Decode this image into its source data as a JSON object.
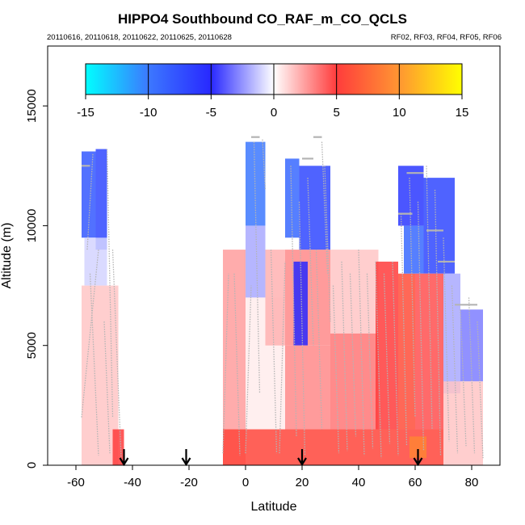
{
  "chart_data": {
    "type": "heatmap",
    "title": "HIPPO4 Southbound CO_RAF_m_CO_QCLS",
    "subtitle_left": "20110616, 20110618, 20110622, 20110625, 20110628",
    "subtitle_right": "RF02, RF03, RF04, RF05, RF06",
    "xlabel": "Latitude",
    "ylabel": "Altitude (m)",
    "xlim": [
      -70,
      90
    ],
    "ylim": [
      0,
      17500
    ],
    "x_ticks": [
      -60,
      -40,
      -20,
      0,
      20,
      40,
      60,
      80
    ],
    "x_tick_labels": [
      "-60",
      "-40",
      "-20",
      "0",
      "20",
      "40",
      "60",
      "80"
    ],
    "y_ticks": [
      0,
      5000,
      10000,
      15000
    ],
    "y_tick_labels": [
      "0",
      "5000",
      "10000",
      "15000"
    ],
    "colorbar": {
      "min": -15,
      "max": 15,
      "ticks": [
        -15,
        -10,
        -5,
        0,
        5,
        10,
        15
      ],
      "tick_labels": [
        "-15",
        "-10",
        "-5",
        "0",
        "5",
        "10",
        "15"
      ],
      "stops": [
        {
          "value": -15,
          "color": "#00ffff"
        },
        {
          "value": -10,
          "color": "#3c78ff"
        },
        {
          "value": -5,
          "color": "#2828ff"
        },
        {
          "value": 0,
          "color": "#ffffff"
        },
        {
          "value": 5,
          "color": "#ff3c3c"
        },
        {
          "value": 10,
          "color": "#ff9632"
        },
        {
          "value": 15,
          "color": "#ffff00"
        }
      ]
    },
    "markers_latitude": [
      -43,
      -21,
      20,
      61
    ],
    "regions": [
      {
        "lat": [
          -58,
          -53
        ],
        "alt": [
          9500,
          13100
        ],
        "value": -8
      },
      {
        "lat": [
          -53,
          -49
        ],
        "alt": [
          9000,
          13200
        ],
        "value": -7
      },
      {
        "lat": [
          -57,
          -49
        ],
        "alt": [
          7500,
          9500
        ],
        "value": -1
      },
      {
        "lat": [
          -58,
          -45
        ],
        "alt": [
          0,
          7500
        ],
        "value": 1.5
      },
      {
        "lat": [
          -47,
          -43
        ],
        "alt": [
          0,
          1500
        ],
        "value": 5
      },
      {
        "lat": [
          -8,
          0
        ],
        "alt": [
          0,
          9000
        ],
        "value": 2.5
      },
      {
        "lat": [
          0,
          7
        ],
        "alt": [
          10000,
          13500
        ],
        "value": -10
      },
      {
        "lat": [
          0,
          7
        ],
        "alt": [
          7000,
          10000
        ],
        "value": -2
      },
      {
        "lat": [
          0,
          14
        ],
        "alt": [
          1500,
          7000
        ],
        "value": 0.5
      },
      {
        "lat": [
          7,
          14
        ],
        "alt": [
          5000,
          9000
        ],
        "value": 2
      },
      {
        "lat": [
          14,
          19
        ],
        "alt": [
          9500,
          12800
        ],
        "value": -9
      },
      {
        "lat": [
          19,
          30
        ],
        "alt": [
          9000,
          12500
        ],
        "value": -7
      },
      {
        "lat": [
          14,
          30
        ],
        "alt": [
          5000,
          9000
        ],
        "value": 3
      },
      {
        "lat": [
          17,
          22
        ],
        "alt": [
          5000,
          8500
        ],
        "value": -5
      },
      {
        "lat": [
          14,
          30
        ],
        "alt": [
          1500,
          5000
        ],
        "value": 3
      },
      {
        "lat": [
          30,
          47
        ],
        "alt": [
          5500,
          9000
        ],
        "value": 1.5
      },
      {
        "lat": [
          30,
          47
        ],
        "alt": [
          1500,
          5500
        ],
        "value": 3.5
      },
      {
        "lat": [
          46,
          54
        ],
        "alt": [
          1500,
          8500
        ],
        "value": 5
      },
      {
        "lat": [
          54,
          60
        ],
        "alt": [
          1500,
          8000
        ],
        "value": 6
      },
      {
        "lat": [
          54,
          63
        ],
        "alt": [
          10000,
          12500
        ],
        "value": -6
      },
      {
        "lat": [
          56,
          63
        ],
        "alt": [
          8000,
          10000
        ],
        "value": -9
      },
      {
        "lat": [
          63,
          74
        ],
        "alt": [
          8000,
          12000
        ],
        "value": -7
      },
      {
        "lat": [
          60,
          70
        ],
        "alt": [
          1500,
          8000
        ],
        "value": 4.5
      },
      {
        "lat": [
          70,
          76
        ],
        "alt": [
          3000,
          8000
        ],
        "value": -2
      },
      {
        "lat": [
          76,
          84
        ],
        "alt": [
          3500,
          6500
        ],
        "value": -3
      },
      {
        "lat": [
          70,
          84
        ],
        "alt": [
          0,
          3500
        ],
        "value": 1.5
      },
      {
        "lat": [
          -8,
          70
        ],
        "alt": [
          0,
          1500
        ],
        "value": 5.5
      },
      {
        "lat": [
          58,
          64
        ],
        "alt": [
          300,
          1200
        ],
        "value": 9
      }
    ],
    "profiles": [
      {
        "lat": [
          -58,
          -52
        ],
        "alt": [
          2000,
          9000
        ]
      },
      {
        "lat": [
          -56,
          -54
        ],
        "alt": [
          9000,
          13000
        ]
      },
      {
        "lat": [
          -49,
          -47
        ],
        "alt": [
          13200,
          2000
        ]
      },
      {
        "lat": [
          -47,
          -44
        ],
        "alt": [
          9000,
          300
        ]
      },
      {
        "lat": [
          -55,
          -52
        ],
        "alt": [
          8000,
          400
        ]
      },
      {
        "lat": [
          -50,
          -48
        ],
        "alt": [
          6000,
          500
        ]
      },
      {
        "lat": [
          -8,
          -6
        ],
        "alt": [
          500,
          8000
        ]
      },
      {
        "lat": [
          -4,
          -2
        ],
        "alt": [
          8000,
          400
        ]
      },
      {
        "lat": [
          0,
          2
        ],
        "alt": [
          500,
          7500
        ]
      },
      {
        "lat": [
          3,
          5
        ],
        "alt": [
          13500,
          3000
        ]
      },
      {
        "lat": [
          6,
          7
        ],
        "alt": [
          13600,
          11500
        ]
      },
      {
        "lat": [
          9,
          11
        ],
        "alt": [
          9000,
          500
        ]
      },
      {
        "lat": [
          12,
          14
        ],
        "alt": [
          500,
          8500
        ]
      },
      {
        "lat": [
          16,
          18
        ],
        "alt": [
          12500,
          1200
        ]
      },
      {
        "lat": [
          19,
          21
        ],
        "alt": [
          11000,
          400
        ]
      },
      {
        "lat": [
          22,
          24
        ],
        "alt": [
          12000,
          5000
        ]
      },
      {
        "lat": [
          25,
          27
        ],
        "alt": [
          9000,
          1500
        ]
      },
      {
        "lat": [
          27,
          29
        ],
        "alt": [
          13500,
          8000
        ]
      },
      {
        "lat": [
          28,
          30
        ],
        "alt": [
          12500,
          6000
        ]
      },
      {
        "lat": [
          31,
          33
        ],
        "alt": [
          7500,
          500
        ]
      },
      {
        "lat": [
          34,
          36
        ],
        "alt": [
          8500,
          600
        ]
      },
      {
        "lat": [
          37,
          39
        ],
        "alt": [
          8000,
          1200
        ]
      },
      {
        "lat": [
          40,
          42
        ],
        "alt": [
          9000,
          400
        ]
      },
      {
        "lat": [
          43,
          45
        ],
        "alt": [
          8000,
          700
        ]
      },
      {
        "lat": [
          46,
          48
        ],
        "alt": [
          8500,
          300
        ]
      },
      {
        "lat": [
          49,
          51
        ],
        "alt": [
          8000,
          900
        ]
      },
      {
        "lat": [
          52,
          54
        ],
        "alt": [
          8500,
          400
        ]
      },
      {
        "lat": [
          55,
          57
        ],
        "alt": [
          10500,
          800
        ]
      },
      {
        "lat": [
          58,
          60
        ],
        "alt": [
          12000,
          2000
        ]
      },
      {
        "lat": [
          61,
          63
        ],
        "alt": [
          11000,
          600
        ]
      },
      {
        "lat": [
          64,
          66
        ],
        "alt": [
          12500,
          1500
        ]
      },
      {
        "lat": [
          67,
          69
        ],
        "alt": [
          11500,
          400
        ]
      },
      {
        "lat": [
          70,
          72
        ],
        "alt": [
          9500,
          1000
        ]
      },
      {
        "lat": [
          73,
          75
        ],
        "alt": [
          7500,
          500
        ]
      },
      {
        "lat": [
          76,
          78
        ],
        "alt": [
          6500,
          800
        ]
      },
      {
        "lat": [
          79,
          81
        ],
        "alt": [
          7000,
          500
        ]
      },
      {
        "lat": [
          82,
          84
        ],
        "alt": [
          6000,
          300
        ]
      }
    ],
    "flight_track_segments": [
      {
        "lat": [
          -58,
          -55
        ],
        "alt": [
          12500,
          12500
        ]
      },
      {
        "lat": [
          2,
          5
        ],
        "alt": [
          13700,
          13700
        ]
      },
      {
        "lat": [
          20,
          24
        ],
        "alt": [
          12800,
          12800
        ]
      },
      {
        "lat": [
          24,
          27
        ],
        "alt": [
          13700,
          13700
        ]
      },
      {
        "lat": [
          54,
          59
        ],
        "alt": [
          10500,
          10500
        ]
      },
      {
        "lat": [
          57,
          63
        ],
        "alt": [
          12200,
          12200
        ]
      },
      {
        "lat": [
          64,
          70
        ],
        "alt": [
          9800,
          9800
        ]
      },
      {
        "lat": [
          68,
          74
        ],
        "alt": [
          8500,
          8500
        ]
      },
      {
        "lat": [
          74,
          82
        ],
        "alt": [
          6700,
          6700
        ]
      }
    ]
  }
}
